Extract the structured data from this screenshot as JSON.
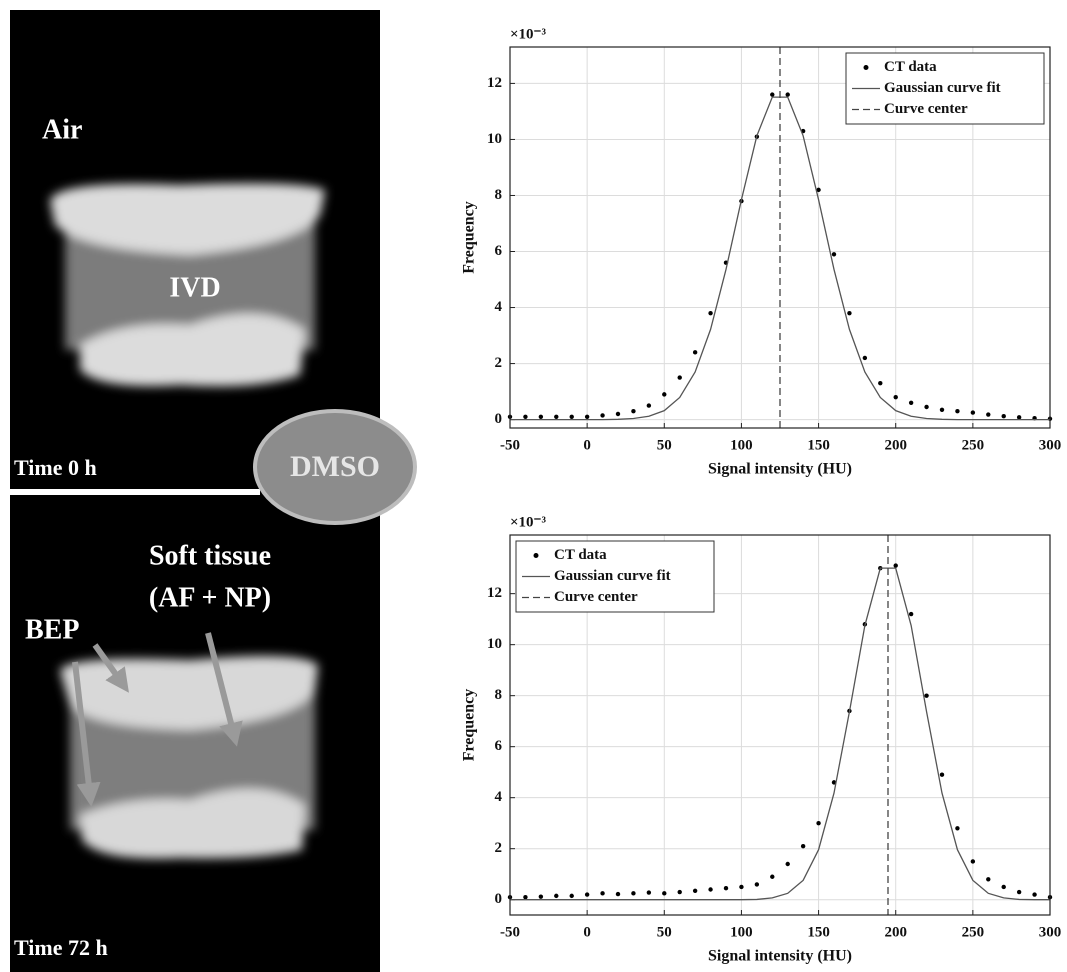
{
  "image_labels": {
    "air": "Air",
    "ivd": "IVD",
    "time_top": "Time 0 h",
    "dmso": "DMSO",
    "soft_tissue_line1": "Soft tissue",
    "soft_tissue_line2": "(AF + NP)",
    "bep": "BEP",
    "time_bottom": "Time 72 h"
  },
  "chart_data": [
    {
      "type": "line",
      "xlabel": "Signal intensity (HU)",
      "ylabel": "Frequency",
      "y_multiplier": "×10⁻³",
      "x": [
        -50,
        -40,
        -30,
        -20,
        -10,
        0,
        10,
        20,
        30,
        40,
        50,
        60,
        70,
        80,
        90,
        100,
        110,
        120,
        130,
        140,
        150,
        160,
        170,
        180,
        190,
        200,
        210,
        220,
        230,
        240,
        250,
        260,
        270,
        280,
        290,
        300
      ],
      "series": [
        {
          "name": "CT data",
          "color": "#000000",
          "style": "markers",
          "values": [
            0.1,
            0.1,
            0.1,
            0.1,
            0.1,
            0.1,
            0.15,
            0.2,
            0.3,
            0.5,
            0.9,
            1.5,
            2.4,
            3.8,
            5.6,
            7.8,
            10.1,
            11.6,
            11.6,
            10.3,
            8.2,
            5.9,
            3.8,
            2.2,
            1.3,
            0.8,
            0.6,
            0.45,
            0.35,
            0.3,
            0.25,
            0.18,
            0.12,
            0.08,
            0.05,
            0.03
          ]
        },
        {
          "name": "Gaussian curve fit",
          "color": "#555555",
          "style": "line",
          "values": [
            0,
            0,
            0,
            0,
            0,
            0,
            0,
            0.01,
            0.04,
            0.12,
            0.32,
            0.79,
            1.7,
            3.22,
            5.36,
            7.85,
            10.13,
            11.51,
            11.51,
            10.13,
            7.85,
            5.36,
            3.22,
            1.7,
            0.79,
            0.32,
            0.12,
            0.04,
            0.01,
            0,
            0,
            0,
            0,
            0,
            0,
            0
          ]
        },
        {
          "name": "Curve center",
          "color": "#444444",
          "style": "dashed",
          "center": 125
        }
      ],
      "xlim": [
        -50,
        300
      ],
      "ylim": [
        -0.3,
        13.3
      ],
      "xticks": [
        -50,
        0,
        50,
        100,
        150,
        200,
        250,
        300
      ],
      "yticks": [
        0,
        2,
        4,
        6,
        8,
        10,
        12
      ],
      "grid": true,
      "legend": "upper right"
    },
    {
      "type": "line",
      "xlabel": "Signal intensity (HU)",
      "ylabel": "Frequency",
      "y_multiplier": "×10⁻³",
      "x": [
        -50,
        -40,
        -30,
        -20,
        -10,
        0,
        10,
        20,
        30,
        40,
        50,
        60,
        70,
        80,
        90,
        100,
        110,
        120,
        130,
        140,
        150,
        160,
        170,
        180,
        190,
        200,
        210,
        220,
        230,
        240,
        250,
        260,
        270,
        280,
        290,
        300
      ],
      "series": [
        {
          "name": "CT data",
          "color": "#000000",
          "style": "markers",
          "values": [
            0.1,
            0.1,
            0.12,
            0.15,
            0.15,
            0.2,
            0.25,
            0.22,
            0.25,
            0.28,
            0.25,
            0.3,
            0.35,
            0.4,
            0.45,
            0.5,
            0.6,
            0.9,
            1.4,
            2.1,
            3.0,
            4.6,
            7.4,
            10.8,
            13.0,
            13.1,
            11.2,
            8.0,
            4.9,
            2.8,
            1.5,
            0.8,
            0.5,
            0.3,
            0.2,
            0.1
          ]
        },
        {
          "name": "Gaussian curve fit",
          "color": "#555555",
          "style": "line",
          "values": [
            0,
            0,
            0,
            0,
            0,
            0,
            0,
            0,
            0,
            0,
            0,
            0,
            0,
            0,
            0,
            0,
            0.01,
            0.07,
            0.25,
            0.76,
            1.96,
            4.18,
            7.37,
            10.75,
            13.0,
            13.0,
            10.75,
            7.37,
            4.18,
            1.96,
            0.76,
            0.25,
            0.07,
            0.01,
            0,
            0
          ]
        },
        {
          "name": "Curve center",
          "color": "#444444",
          "style": "dashed",
          "center": 195
        }
      ],
      "xlim": [
        -50,
        300
      ],
      "ylim": [
        -0.6,
        14.3
      ],
      "xticks": [
        -50,
        0,
        50,
        100,
        150,
        200,
        250,
        300
      ],
      "yticks": [
        0,
        2,
        4,
        6,
        8,
        10,
        12
      ],
      "grid": true,
      "legend": "upper left"
    }
  ]
}
